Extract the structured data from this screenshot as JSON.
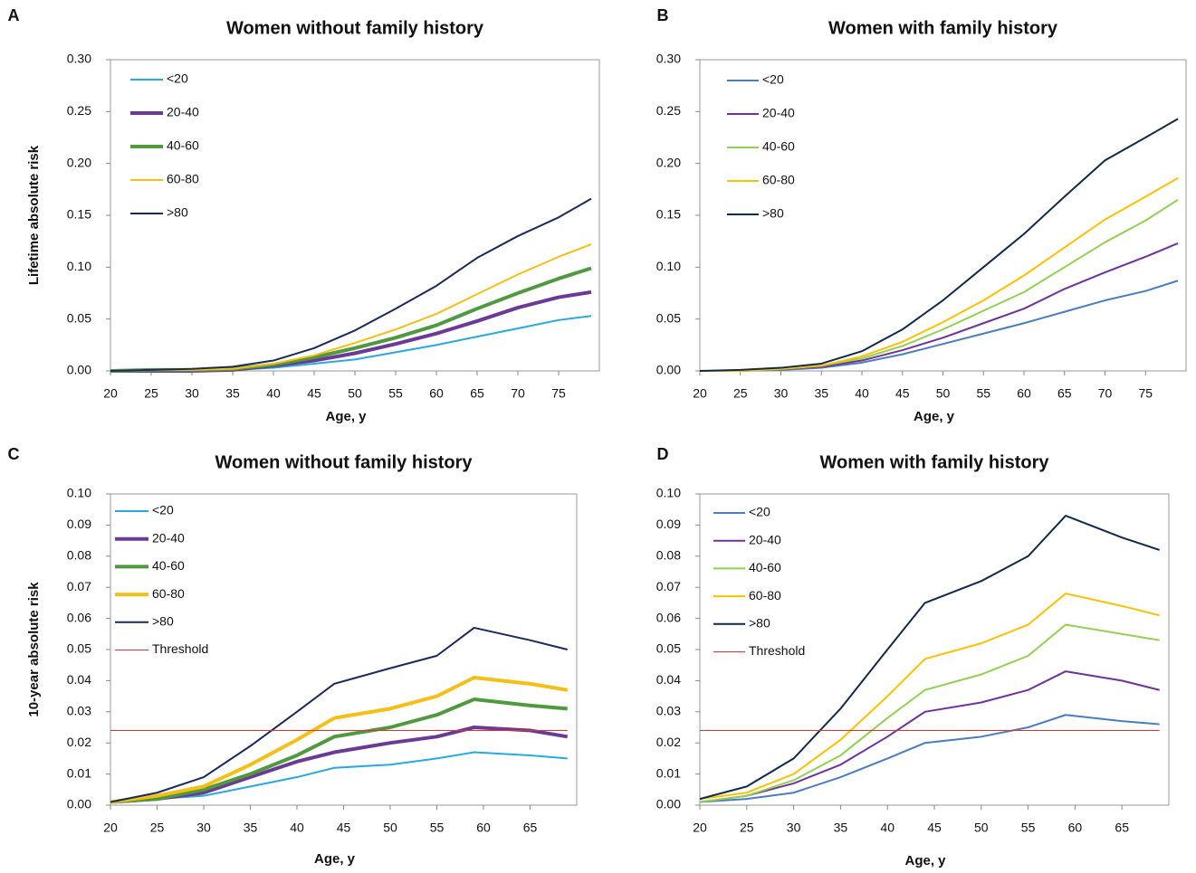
{
  "chart_data": [
    {
      "type": "line",
      "label": "A",
      "title": "Women without family history",
      "xlabel": "Age, y",
      "ylabel": "Lifetime absolute risk",
      "x": [
        20,
        25,
        30,
        35,
        40,
        45,
        50,
        55,
        60,
        65,
        70,
        75,
        79
      ],
      "xlim": [
        20,
        80
      ],
      "xticks": [
        20,
        25,
        30,
        35,
        40,
        45,
        50,
        55,
        60,
        65,
        70,
        75
      ],
      "ylim": [
        0,
        0.3
      ],
      "yticks": [
        {
          "value": 0,
          "label": "0.00"
        },
        {
          "value": 0.05,
          "label": "0.05"
        },
        {
          "value": 0.1,
          "label": "0.10"
        },
        {
          "value": 0.15,
          "label": "0.15"
        },
        {
          "value": 0.2,
          "label": "0.20"
        },
        {
          "value": 0.25,
          "label": "0.25"
        },
        {
          "value": 0.3,
          "label": "0.30"
        }
      ],
      "grid": false,
      "legend": "upper left",
      "series": [
        {
          "name": "<20",
          "color": "#29a9e1",
          "line_width": 2,
          "values": [
            0,
            0,
            0,
            0.001,
            0.003,
            0.007,
            0.011,
            0.018,
            0.025,
            0.033,
            0.041,
            0.049,
            0.053
          ]
        },
        {
          "name": "20-40",
          "color": "#6b3a96",
          "line_width": 4,
          "values": [
            0,
            0,
            0,
            0.001,
            0.005,
            0.01,
            0.017,
            0.026,
            0.036,
            0.048,
            0.061,
            0.071,
            0.076
          ]
        },
        {
          "name": "40-60",
          "color": "#4f9a3e",
          "line_width": 4,
          "values": [
            0,
            0.001,
            0.001,
            0.002,
            0.006,
            0.013,
            0.022,
            0.032,
            0.044,
            0.06,
            0.075,
            0.089,
            0.099
          ]
        },
        {
          "name": "60-80",
          "color": "#f5bf16",
          "line_width": 2,
          "values": [
            0,
            0.001,
            0.001,
            0.002,
            0.007,
            0.015,
            0.027,
            0.04,
            0.055,
            0.074,
            0.093,
            0.11,
            0.122
          ]
        },
        {
          "name": ">80",
          "color": "#1b2a5c",
          "line_width": 2,
          "values": [
            0,
            0.001,
            0.002,
            0.004,
            0.01,
            0.022,
            0.039,
            0.06,
            0.082,
            0.109,
            0.13,
            0.148,
            0.166
          ]
        }
      ]
    },
    {
      "type": "line",
      "label": "B",
      "title": "Women with family history",
      "xlabel": "Age, y",
      "x": [
        20,
        25,
        30,
        35,
        40,
        45,
        50,
        55,
        60,
        65,
        70,
        75,
        79
      ],
      "xlim": [
        20,
        80
      ],
      "xticks": [
        20,
        25,
        30,
        35,
        40,
        45,
        50,
        55,
        60,
        65,
        70,
        75
      ],
      "ylim": [
        0,
        0.3
      ],
      "yticks": [
        {
          "value": 0,
          "label": "0.00"
        },
        {
          "value": 0.05,
          "label": "0.05"
        },
        {
          "value": 0.1,
          "label": "0.10"
        },
        {
          "value": 0.15,
          "label": "0.15"
        },
        {
          "value": 0.2,
          "label": "0.20"
        },
        {
          "value": 0.25,
          "label": "0.25"
        },
        {
          "value": 0.3,
          "label": "0.30"
        }
      ],
      "grid": false,
      "legend": "upper left",
      "series": [
        {
          "name": "<20",
          "color": "#4a7dc0",
          "line_width": 2,
          "values": [
            0,
            0,
            0.001,
            0.003,
            0.008,
            0.016,
            0.026,
            0.036,
            0.046,
            0.057,
            0.068,
            0.077,
            0.087
          ]
        },
        {
          "name": "20-40",
          "color": "#7030a0",
          "line_width": 2,
          "values": [
            0,
            0,
            0.002,
            0.004,
            0.01,
            0.02,
            0.032,
            0.046,
            0.06,
            0.079,
            0.095,
            0.11,
            0.123
          ]
        },
        {
          "name": "40-60",
          "color": "#92d050",
          "line_width": 2,
          "values": [
            0,
            0,
            0.002,
            0.005,
            0.012,
            0.024,
            0.04,
            0.058,
            0.076,
            0.1,
            0.124,
            0.145,
            0.165
          ]
        },
        {
          "name": "60-80",
          "color": "#ffc000",
          "line_width": 2,
          "values": [
            0,
            0,
            0.002,
            0.005,
            0.014,
            0.028,
            0.047,
            0.068,
            0.092,
            0.119,
            0.146,
            0.168,
            0.186
          ]
        },
        {
          "name": ">80",
          "color": "#0f2a4a",
          "line_width": 2,
          "values": [
            0,
            0.001,
            0.003,
            0.007,
            0.019,
            0.04,
            0.068,
            0.1,
            0.132,
            0.168,
            0.203,
            0.225,
            0.243
          ]
        }
      ]
    },
    {
      "type": "line",
      "label": "C",
      "title": "Women without family history",
      "xlabel": "Age, y",
      "ylabel": "10-year absolute risk",
      "x": [
        20,
        25,
        30,
        35,
        40,
        44,
        50,
        55,
        59,
        65,
        69
      ],
      "xlim": [
        20,
        70
      ],
      "xticks": [
        20,
        25,
        30,
        35,
        40,
        45,
        50,
        55,
        60,
        65
      ],
      "ylim": [
        0,
        0.1
      ],
      "yticks": [
        {
          "value": 0,
          "label": "0.00"
        },
        {
          "value": 0.01,
          "label": "0.01"
        },
        {
          "value": 0.02,
          "label": "0.02"
        },
        {
          "value": 0.03,
          "label": "0.03"
        },
        {
          "value": 0.04,
          "label": "0.04"
        },
        {
          "value": 0.05,
          "label": "0.05"
        },
        {
          "value": 0.06,
          "label": "0.06"
        },
        {
          "value": 0.07,
          "label": "0.07"
        },
        {
          "value": 0.08,
          "label": "0.08"
        },
        {
          "value": 0.09,
          "label": "0.09"
        },
        {
          "value": 0.1,
          "label": "0.10"
        }
      ],
      "grid": false,
      "legend": "upper left",
      "series": [
        {
          "name": "<20",
          "color": "#29a9e1",
          "line_width": 2,
          "values": [
            0.001,
            0.002,
            0.003,
            0.006,
            0.009,
            0.012,
            0.013,
            0.015,
            0.017,
            0.016,
            0.015
          ]
        },
        {
          "name": "20-40",
          "color": "#6b3a96",
          "line_width": 4,
          "values": [
            0.001,
            0.002,
            0.004,
            0.009,
            0.014,
            0.017,
            0.02,
            0.022,
            0.025,
            0.024,
            0.022
          ]
        },
        {
          "name": "40-60",
          "color": "#4f9a3e",
          "line_width": 4,
          "values": [
            0.001,
            0.002,
            0.005,
            0.01,
            0.016,
            0.022,
            0.025,
            0.029,
            0.034,
            0.032,
            0.031
          ]
        },
        {
          "name": "60-80",
          "color": "#f5bf16",
          "line_width": 4,
          "values": [
            0.001,
            0.003,
            0.006,
            0.013,
            0.021,
            0.028,
            0.031,
            0.035,
            0.041,
            0.039,
            0.037
          ]
        },
        {
          "name": ">80",
          "color": "#1b2a5c",
          "line_width": 2,
          "values": [
            0.001,
            0.004,
            0.009,
            0.019,
            0.03,
            0.039,
            0.044,
            0.048,
            0.057,
            0.053,
            0.05
          ]
        },
        {
          "name": "Threshold",
          "color": "#e03030",
          "line_width": 1,
          "values": [
            0.024,
            0.024,
            0.024,
            0.024,
            0.024,
            0.024,
            0.024,
            0.024,
            0.024,
            0.024,
            0.024
          ]
        }
      ]
    },
    {
      "type": "line",
      "label": "D",
      "title": "Women with family history",
      "xlabel": "Age, y",
      "x": [
        20,
        25,
        30,
        35,
        40,
        44,
        50,
        55,
        59,
        65,
        69
      ],
      "xlim": [
        20,
        70
      ],
      "xticks": [
        20,
        25,
        30,
        35,
        40,
        45,
        50,
        55,
        60,
        65
      ],
      "ylim": [
        0,
        0.1
      ],
      "yticks": [
        {
          "value": 0,
          "label": "0.00"
        },
        {
          "value": 0.01,
          "label": "0.01"
        },
        {
          "value": 0.02,
          "label": "0.02"
        },
        {
          "value": 0.03,
          "label": "0.03"
        },
        {
          "value": 0.04,
          "label": "0.04"
        },
        {
          "value": 0.05,
          "label": "0.05"
        },
        {
          "value": 0.06,
          "label": "0.06"
        },
        {
          "value": 0.07,
          "label": "0.07"
        },
        {
          "value": 0.08,
          "label": "0.08"
        },
        {
          "value": 0.09,
          "label": "0.09"
        },
        {
          "value": 0.1,
          "label": "0.10"
        }
      ],
      "grid": false,
      "legend": "upper left",
      "series": [
        {
          "name": "<20",
          "color": "#4a7dc0",
          "line_width": 2,
          "values": [
            0.001,
            0.002,
            0.004,
            0.009,
            0.015,
            0.02,
            0.022,
            0.025,
            0.029,
            0.027,
            0.026
          ]
        },
        {
          "name": "20-40",
          "color": "#7030a0",
          "line_width": 2,
          "values": [
            0.001,
            0.003,
            0.007,
            0.013,
            0.022,
            0.03,
            0.033,
            0.037,
            0.043,
            0.04,
            0.037
          ]
        },
        {
          "name": "40-60",
          "color": "#92d050",
          "line_width": 2,
          "values": [
            0.001,
            0.003,
            0.008,
            0.016,
            0.028,
            0.037,
            0.042,
            0.048,
            0.058,
            0.055,
            0.053
          ]
        },
        {
          "name": "60-80",
          "color": "#ffc000",
          "line_width": 2,
          "values": [
            0.002,
            0.004,
            0.01,
            0.021,
            0.035,
            0.047,
            0.052,
            0.058,
            0.068,
            0.064,
            0.061
          ]
        },
        {
          "name": ">80",
          "color": "#0f2a4a",
          "line_width": 2,
          "values": [
            0.002,
            0.006,
            0.015,
            0.031,
            0.05,
            0.065,
            0.072,
            0.08,
            0.093,
            0.086,
            0.082
          ]
        },
        {
          "name": "Threshold",
          "color": "#e03030",
          "line_width": 1,
          "values": [
            0.024,
            0.024,
            0.024,
            0.024,
            0.024,
            0.024,
            0.024,
            0.024,
            0.024,
            0.024,
            0.024
          ]
        }
      ]
    }
  ]
}
